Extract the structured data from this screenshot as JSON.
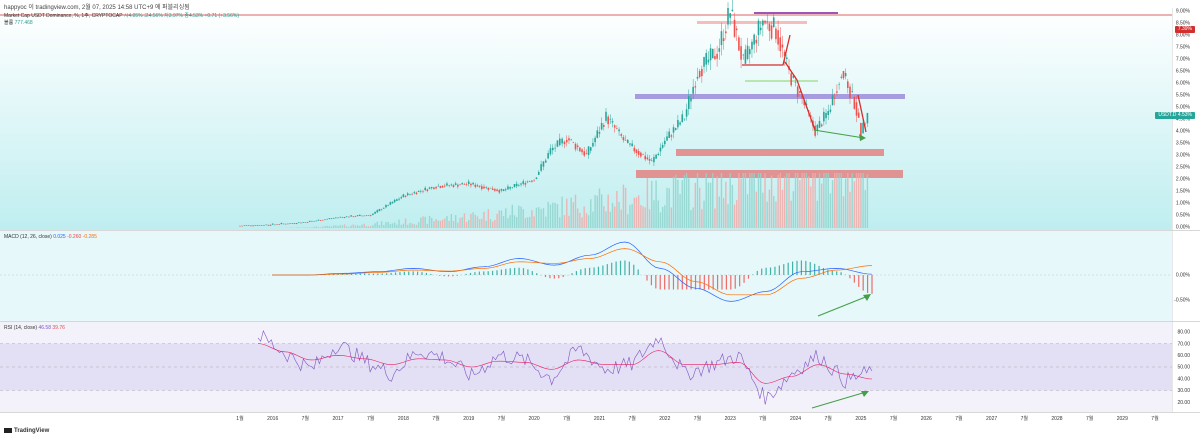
{
  "header": {
    "publish_line": "happyoc 이 tradingview.com, 2월 07, 2025 14:58 UTC+9 에 퍼블리싱됨",
    "main_title": "Market Cap USDT Dominance, %, 1주, CRYPTOCAP",
    "ohlc": "시4.05% 고4.56% 저3.97% 종4.53% +0.71 (+3.56%)",
    "volume_label": "볼륨",
    "volume_value": "777.468"
  },
  "panes": {
    "macd": {
      "label": "MACD (12, 26, close)",
      "v1": "0.025",
      "v2": "-0.260",
      "v3": "-0.285"
    },
    "rsi": {
      "label": "RSI (14, close)",
      "v1": "46.58",
      "v2": "39.76"
    }
  },
  "price_tags": {
    "top_red": "7.39%",
    "current_label": "USDT.D",
    "current_value": "4.53%"
  },
  "colors": {
    "up": "#26a69a",
    "down": "#ef5350",
    "price_bg": "#e6fbfb",
    "rsi_bg": "#ece9f7",
    "macd_line": "#2962ff",
    "signal_line": "#ff6d00",
    "rsi_line": "#7e57c2",
    "rsi_ma": "#e91e63",
    "trend_red": "#d32f2f",
    "trend_green": "#43a047",
    "zone_purple": "#9c8cdc",
    "zone_red": "#e57373"
  },
  "footer": {
    "brand": "TradingView"
  },
  "chart_data": [
    {
      "type": "candlestick",
      "title": "Market Cap USDT Dominance, %, 1주, CRYPTOCAP",
      "x_ticks": [
        "1월",
        "2016",
        "7월",
        "2017",
        "7월",
        "2018",
        "7월",
        "2019",
        "7월",
        "2020",
        "7월",
        "2021",
        "7월",
        "2022",
        "7월",
        "2023",
        "7월",
        "2024",
        "7월",
        "2025",
        "7월",
        "2026",
        "7월",
        "2027",
        "7월",
        "2028",
        "7월",
        "2029",
        "7월"
      ],
      "y_ticks": [
        "9.00%",
        "8.50%",
        "8.00%",
        "7.50%",
        "7.00%",
        "6.50%",
        "6.00%",
        "5.50%",
        "5.00%",
        "4.50%",
        "4.00%",
        "3.50%",
        "3.00%",
        "2.50%",
        "2.00%",
        "1.50%",
        "1.00%",
        "0.50%",
        "0.00%"
      ],
      "ylim": [
        0,
        9
      ],
      "approx_close_series": [
        {
          "x": 2015.5,
          "y": 0.05
        },
        {
          "x": 2016.0,
          "y": 0.1
        },
        {
          "x": 2016.5,
          "y": 0.2
        },
        {
          "x": 2017.0,
          "y": 0.4
        },
        {
          "x": 2017.5,
          "y": 0.5
        },
        {
          "x": 2018.0,
          "y": 1.3
        },
        {
          "x": 2018.5,
          "y": 1.7
        },
        {
          "x": 2019.0,
          "y": 1.8
        },
        {
          "x": 2019.5,
          "y": 1.5
        },
        {
          "x": 2020.0,
          "y": 2.0
        },
        {
          "x": 2020.25,
          "y": 3.2
        },
        {
          "x": 2020.5,
          "y": 3.7
        },
        {
          "x": 2020.8,
          "y": 3.0
        },
        {
          "x": 2021.1,
          "y": 4.6
        },
        {
          "x": 2021.4,
          "y": 3.5
        },
        {
          "x": 2021.8,
          "y": 2.7
        },
        {
          "x": 2022.0,
          "y": 3.6
        },
        {
          "x": 2022.3,
          "y": 4.6
        },
        {
          "x": 2022.5,
          "y": 6.5
        },
        {
          "x": 2022.8,
          "y": 7.3
        },
        {
          "x": 2023.0,
          "y": 9.0
        },
        {
          "x": 2023.2,
          "y": 6.8
        },
        {
          "x": 2023.5,
          "y": 8.6
        },
        {
          "x": 2023.7,
          "y": 8.2
        },
        {
          "x": 2023.9,
          "y": 6.4
        },
        {
          "x": 2024.1,
          "y": 5.3
        },
        {
          "x": 2024.3,
          "y": 4.0
        },
        {
          "x": 2024.5,
          "y": 4.8
        },
        {
          "x": 2024.7,
          "y": 6.5
        },
        {
          "x": 2024.9,
          "y": 5.2
        },
        {
          "x": 2025.0,
          "y": 3.9
        },
        {
          "x": 2025.1,
          "y": 4.53
        }
      ]
    },
    {
      "type": "line",
      "title": "MACD (12, 26, close)",
      "y_ticks": [
        "0.00%",
        "-0.50%"
      ],
      "series": [
        {
          "name": "MACD",
          "values": [
            0,
            0,
            0.05,
            0.1,
            0.2,
            0.1,
            0.25,
            0.5,
            0.3,
            0.6,
            1.0,
            0.2,
            -0.4,
            -0.8,
            -0.5,
            0.1,
            0.2,
            0.025
          ]
        },
        {
          "name": "Signal",
          "values": [
            0,
            0,
            0.03,
            0.08,
            0.15,
            0.12,
            0.2,
            0.4,
            0.35,
            0.5,
            0.8,
            0.4,
            -0.2,
            -0.6,
            -0.6,
            -0.1,
            0.15,
            0.285
          ]
        }
      ]
    },
    {
      "type": "line",
      "title": "RSI (14, close)",
      "y_ticks": [
        "80.00",
        "70.00",
        "60.00",
        "50.00",
        "40.00",
        "30.00",
        "20.00"
      ],
      "ylim": [
        15,
        85
      ],
      "series": [
        {
          "name": "RSI",
          "values": [
            78,
            62,
            48,
            70,
            55,
            44,
            64,
            58,
            42,
            60,
            56,
            40,
            66,
            48,
            52,
            76,
            44,
            52,
            60,
            22,
            45,
            60,
            38,
            46.58
          ]
        },
        {
          "name": "RSI MA",
          "values": [
            70,
            63,
            56,
            60,
            57,
            52,
            57,
            56,
            50,
            55,
            54,
            48,
            56,
            52,
            52,
            64,
            52,
            52,
            54,
            36,
            42,
            52,
            44,
            39.76
          ]
        }
      ]
    }
  ]
}
